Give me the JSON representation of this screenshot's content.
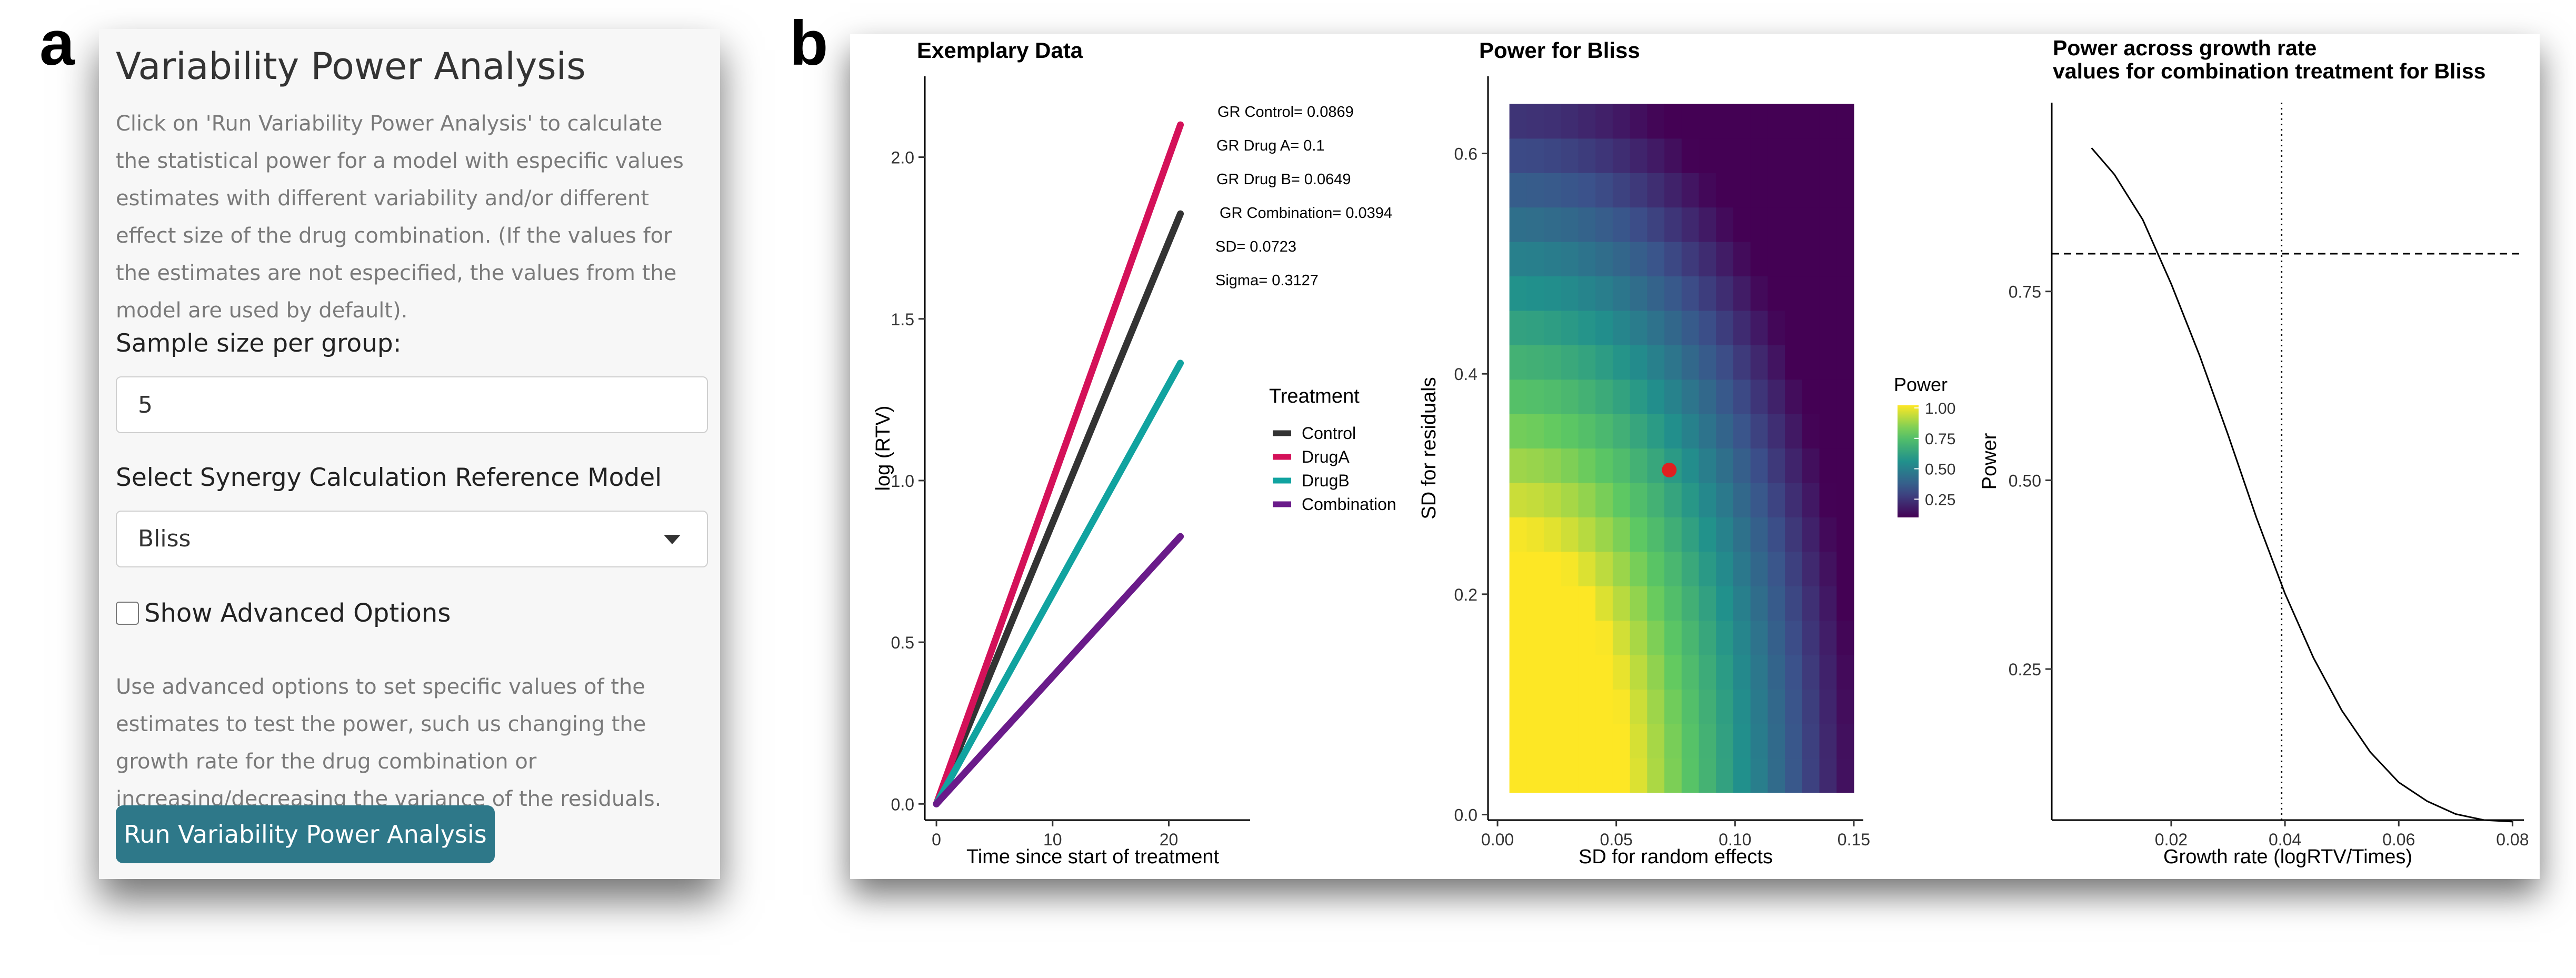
{
  "figure": {
    "label_a": "a",
    "label_b": "b"
  },
  "sidebar": {
    "title": "Variability Power Analysis",
    "help_text": "Click on 'Run Variability Power Analysis' to calculate the statistical power for a model with especific values estimates with different variability and/or different effect size of the drug combination. (If the values for the estimates are not especified, the values from the model are used by default).",
    "sample_size_label": "Sample size per group:",
    "sample_size_value": "5",
    "model_label": "Select Synergy Calculation Reference Model",
    "model_value": "Bliss",
    "advanced_label": "Show Advanced Options",
    "advanced_checked": false,
    "advanced_help": "Use advanced options to set specific values of the estimates to test the power, such us changing the growth rate for the drug combination or increasing/decreasing the variance of the residuals.",
    "run_button": "Run Variability Power Analysis"
  },
  "chart_data": [
    {
      "type": "line",
      "title": "Exemplary Data",
      "xlabel": "Time since start of treatment",
      "ylabel": "log (RTV)",
      "xlim": [
        -1,
        27
      ],
      "ylim": [
        -0.05,
        2.25
      ],
      "xticks": [
        0,
        10,
        20
      ],
      "yticks": [
        0.0,
        0.5,
        1.0,
        1.5,
        2.0
      ],
      "ytick_labels": [
        "0.0",
        "0.5",
        "1.0",
        "1.5",
        "2.0"
      ],
      "legend_title": "Treatment",
      "series": [
        {
          "name": "Control",
          "color": "#333333",
          "x": [
            0,
            21
          ],
          "y": [
            0,
            1.825
          ]
        },
        {
          "name": "DrugA",
          "color": "#d41159",
          "x": [
            0,
            21
          ],
          "y": [
            0,
            2.1
          ]
        },
        {
          "name": "DrugB",
          "color": "#11a3a0",
          "x": [
            0,
            21
          ],
          "y": [
            0,
            1.363
          ]
        },
        {
          "name": "Combination",
          "color": "#6a1b8a",
          "x": [
            0,
            21
          ],
          "y": [
            0,
            0.827
          ]
        }
      ],
      "annotations": [
        "GR Control= 0.0869",
        "GR Drug A= 0.1",
        "GR Drug B= 0.0649",
        "GR Combination= 0.0394",
        "SD= 0.0723",
        "Sigma= 0.3127"
      ]
    },
    {
      "type": "heatmap",
      "title": "Power for Bliss",
      "xlabel": "SD for random effects",
      "ylabel": "SD for residuals",
      "xlim": [
        -0.004,
        0.154
      ],
      "ylim": [
        -0.005,
        0.67
      ],
      "xticks": [
        0.0,
        0.05,
        0.1,
        0.15
      ],
      "xtick_labels": [
        "0.00",
        "0.05",
        "0.10",
        "0.15"
      ],
      "yticks": [
        0.0,
        0.2,
        0.4,
        0.6
      ],
      "ytick_labels": [
        "0.0",
        "0.2",
        "0.4",
        "0.6"
      ],
      "x_range": [
        0.005,
        0.15
      ],
      "y_range": [
        0.02,
        0.645
      ],
      "n_cols": 20,
      "n_rows": 20,
      "legend_title": "Power",
      "colorbar_ticks": [
        "1.00",
        "0.75",
        "0.50",
        "0.25"
      ],
      "colorbar_values": [
        1.0,
        0.75,
        0.5,
        0.25
      ],
      "highlight_point": {
        "x": 0.0723,
        "y": 0.3127
      },
      "highlight_color": "#e02020"
    },
    {
      "type": "line",
      "title": "Power across growth rate values for combination treatment for  Bliss",
      "title_lines": [
        "Power across growth rate",
        "values for combination treatment for  Bliss"
      ],
      "xlabel": "Growth rate (logRTV/Times)",
      "ylabel": "Power",
      "xlim": [
        -0.001,
        0.082
      ],
      "ylim": [
        0.05,
        1.0
      ],
      "xticks": [
        0.02,
        0.04,
        0.06,
        0.08
      ],
      "xtick_labels": [
        "0.02",
        "0.04",
        "0.06",
        "0.08"
      ],
      "yticks": [
        0.25,
        0.5,
        0.75
      ],
      "ytick_labels": [
        "0.25",
        "0.50",
        "0.75"
      ],
      "hline": 0.8,
      "vline": 0.0394,
      "series": [
        {
          "name": "Power",
          "x": [
            0.006,
            0.01,
            0.015,
            0.02,
            0.025,
            0.03,
            0.035,
            0.04,
            0.045,
            0.05,
            0.055,
            0.06,
            0.065,
            0.07,
            0.075,
            0.08
          ],
          "y": [
            0.94,
            0.905,
            0.845,
            0.76,
            0.665,
            0.56,
            0.45,
            0.35,
            0.265,
            0.195,
            0.14,
            0.1,
            0.075,
            0.058,
            0.05,
            0.048
          ]
        }
      ]
    }
  ]
}
